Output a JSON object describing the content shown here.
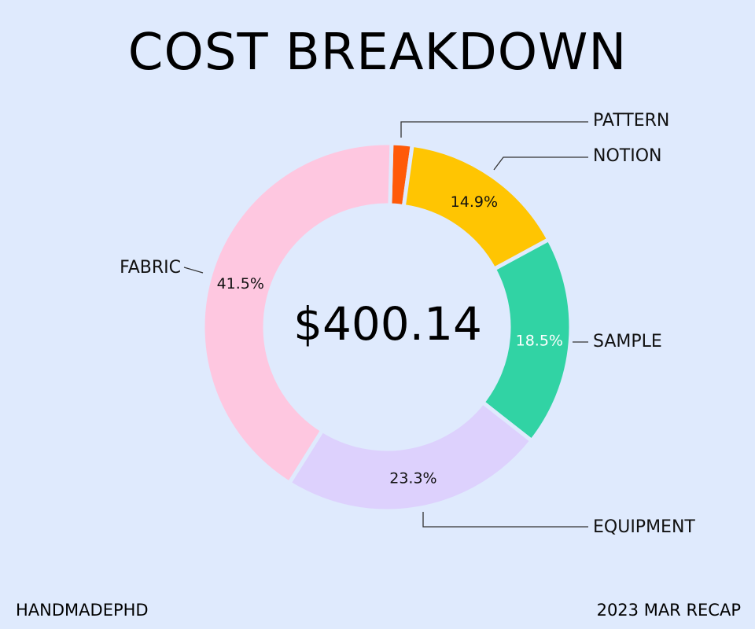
{
  "chart_data": {
    "type": "pie",
    "title": "COST BREAKDOWN",
    "center_label": "$400.14",
    "slices": [
      {
        "label": "PATTERN",
        "percent": 1.8,
        "percent_label": "",
        "color": "#ff5a09",
        "text_color": "#111111"
      },
      {
        "label": "NOTION",
        "percent": 14.9,
        "percent_label": "14.9%",
        "color": "#ffc502",
        "text_color": "#111111"
      },
      {
        "label": "SAMPLE",
        "percent": 18.5,
        "percent_label": "18.5%",
        "color": "#31d3a4",
        "text_color": "#ffffff"
      },
      {
        "label": "EQUIPMENT",
        "percent": 23.3,
        "percent_label": "23.3%",
        "color": "#ddd1fd",
        "text_color": "#111111"
      },
      {
        "label": "FABRIC",
        "percent": 41.5,
        "percent_label": "41.5%",
        "color": "#fec7e0",
        "text_color": "#111111"
      }
    ]
  },
  "footer": {
    "left": "HANDMADEPHD",
    "right": "2023 MAR RECAP"
  },
  "colors": {
    "background": "#dfeafd",
    "separator": "#dfeafd",
    "leader_line": "#333333"
  }
}
